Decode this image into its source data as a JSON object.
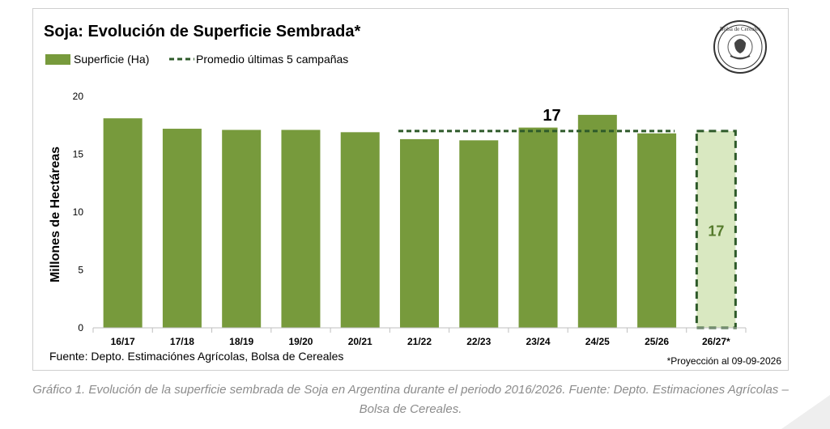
{
  "chart_data": {
    "type": "bar",
    "title": "Soja: Evolución de Superficie Sembrada*",
    "ylabel": "Millones de Hectáreas",
    "xlabel": "",
    "ylim": [
      0,
      20
    ],
    "yticks": [
      "0",
      "5",
      "10",
      "15",
      "20"
    ],
    "grid": false,
    "legend": "top-left",
    "categories": [
      "16/17",
      "17/18",
      "18/19",
      "19/20",
      "20/21",
      "21/22",
      "22/23",
      "23/24",
      "24/25",
      "25/26",
      "26/27*"
    ],
    "series": [
      {
        "name": "Superficie (Ha)",
        "values": [
          18.1,
          17.2,
          17.1,
          17.1,
          16.9,
          16.3,
          16.2,
          17.3,
          18.4,
          16.8,
          17
        ]
      }
    ],
    "projection_index": 10,
    "projection_label": "17",
    "average": {
      "name": "Promedio últimas 5 campañas",
      "value": 17,
      "label": "17",
      "from_category": "21/22",
      "to_category": "25/26"
    },
    "source": "Fuente: Depto. Estimaciónes Agrícolas, Bolsa de Cereales",
    "footnote": "*Proyección al 09-09-2026",
    "colors": {
      "bar": "#779a3c",
      "projection_fill": "#d9e8c1",
      "projection_border": "#2e5a2a",
      "average_line": "#2e5a2a",
      "axis": "#bfbfbf",
      "text": "#000000"
    }
  },
  "logo": {
    "text": "Bolsa de Cereales",
    "icon": "bolsa-de-cereales-seal-icon"
  },
  "caption": "Gráfico 1. Evolución de la superficie sembrada de Soja en Argentina durante el periodo 2016/2026. Fuente: Depto. Estimaciones Agrícolas – Bolsa de Cereales."
}
